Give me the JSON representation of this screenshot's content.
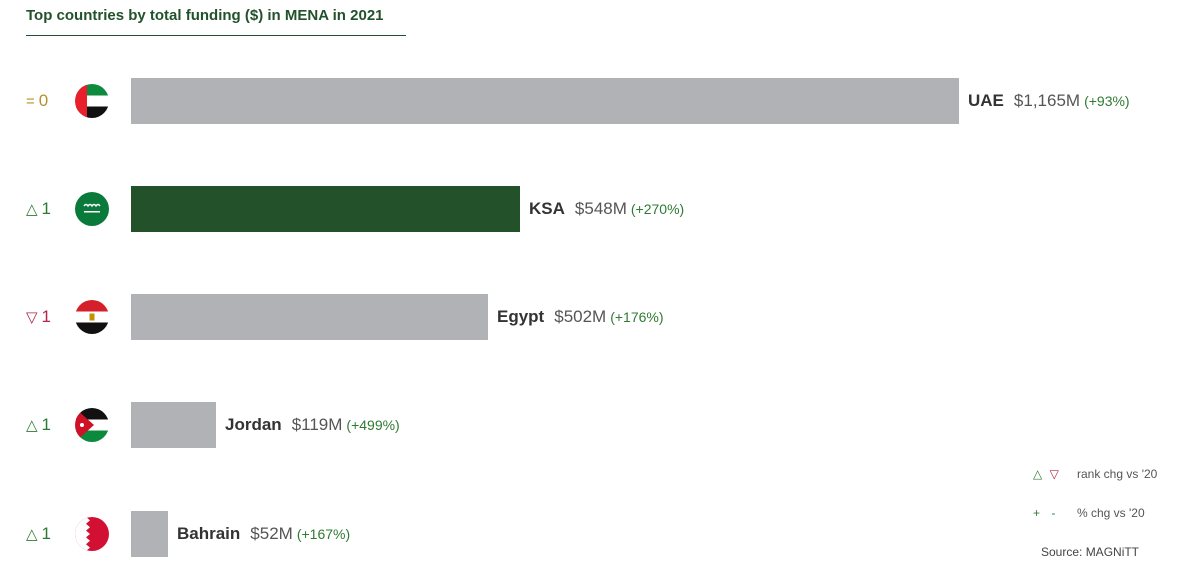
{
  "chart_data": {
    "type": "bar",
    "orientation": "horizontal",
    "title": "Top countries by total funding ($) in MENA in 2021",
    "categories": [
      "UAE",
      "KSA",
      "Egypt",
      "Jordan",
      "Bahrain"
    ],
    "values": [
      1165,
      548,
      502,
      119,
      52
    ],
    "value_labels": [
      "$1,165M",
      "$548M",
      "$502M",
      "$119M",
      "$52M"
    ],
    "pct_change_labels": [
      "(+93%)",
      "(+270%)",
      "(+176%)",
      "(+499%)",
      "(+167%)"
    ],
    "rank_change": [
      {
        "symbol": "=",
        "value": "0",
        "direction": "same"
      },
      {
        "symbol": "△",
        "value": "1",
        "direction": "up"
      },
      {
        "symbol": "▽",
        "value": "1",
        "direction": "down"
      },
      {
        "symbol": "△",
        "value": "1",
        "direction": "up"
      },
      {
        "symbol": "△",
        "value": "1",
        "direction": "up"
      }
    ],
    "bar_colors": [
      "#b1b2b5",
      "#23522a",
      "#b1b2b5",
      "#b1b2b5",
      "#b1b2b5"
    ],
    "flag_icons": [
      "uae-flag-icon",
      "ksa-flag-icon",
      "egypt-flag-icon",
      "jordan-flag-icon",
      "bahrain-flag-icon"
    ],
    "xlim": [
      0,
      1165
    ],
    "grid": false,
    "legend_position": "bottom-right"
  },
  "legend": {
    "rank_up_symbol": "△",
    "rank_down_symbol": "▽",
    "rank_label": "rank chg vs '20",
    "pct_plus_symbol": "+",
    "pct_minus_symbol": "-",
    "pct_label": "% chg vs '20"
  },
  "source": "Source: MAGNiTT",
  "colors": {
    "title": "#22522b",
    "highlight_bar": "#23522a",
    "default_bar": "#b1b2b5",
    "rank_up": "#2f7a33",
    "rank_down": "#b3264a",
    "rank_same": "#b5912e",
    "pct_change": "#2f7a33"
  }
}
